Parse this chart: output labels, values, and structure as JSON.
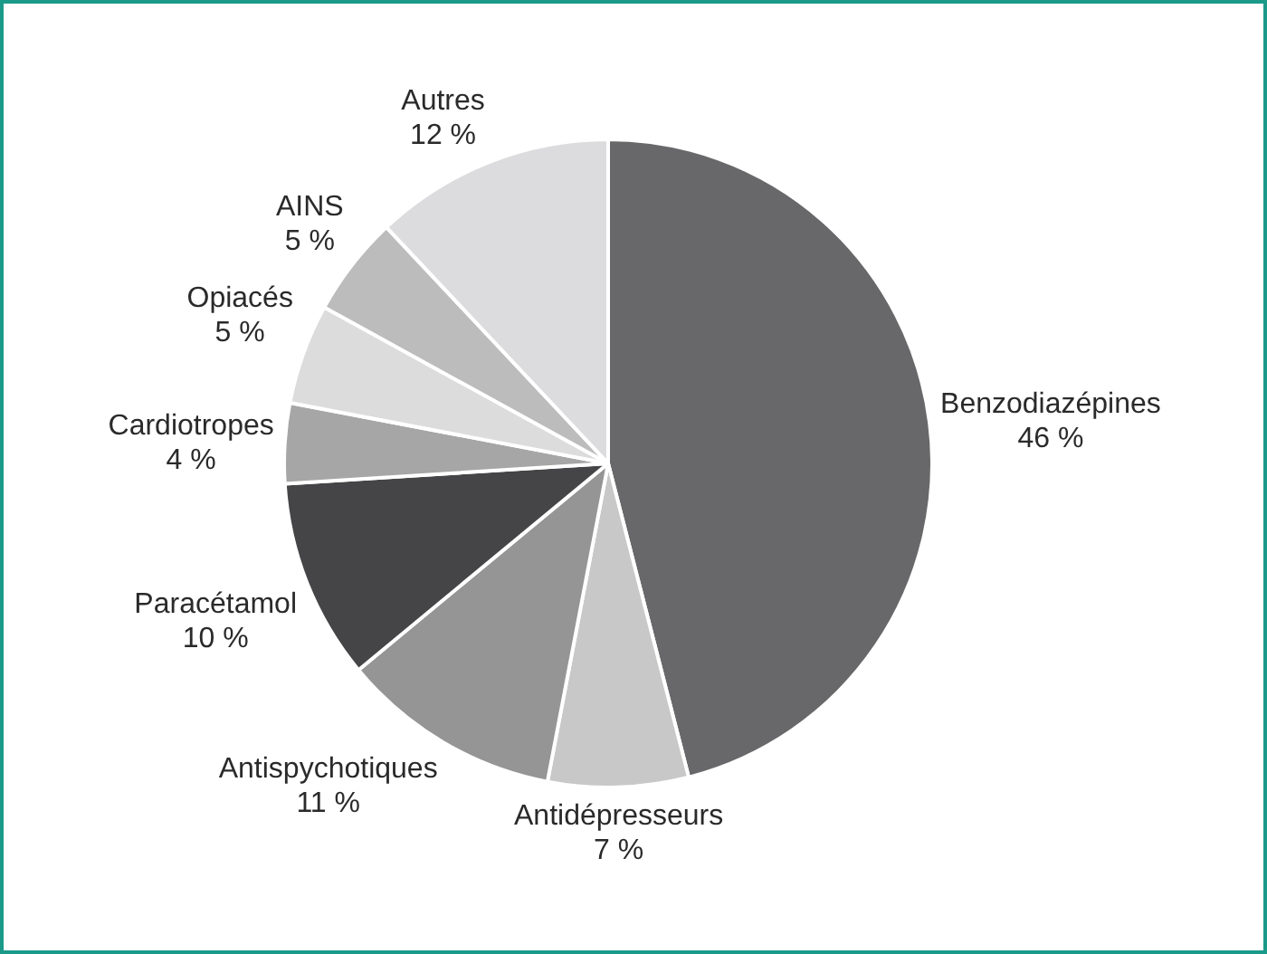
{
  "chart_data": {
    "type": "pie",
    "categories": [
      "Benzodiazépines",
      "Antidépresseurs",
      "Antispychotiques",
      "Paracétamol",
      "Cardiotropes",
      "Opiacés",
      "AINS",
      "Autres"
    ],
    "values": [
      46,
      7,
      11,
      10,
      4,
      5,
      5,
      12
    ],
    "value_labels": [
      "46 %",
      "7 %",
      "11 %",
      "10 %",
      "4 %",
      "5 %",
      "5 %",
      "12 %"
    ],
    "colors": [
      "#68686a",
      "#c8c8c8",
      "#959595",
      "#454547",
      "#a6a6a6",
      "#dcdcdc",
      "#bcbcbc",
      "#dcdcde"
    ],
    "legend": false
  }
}
